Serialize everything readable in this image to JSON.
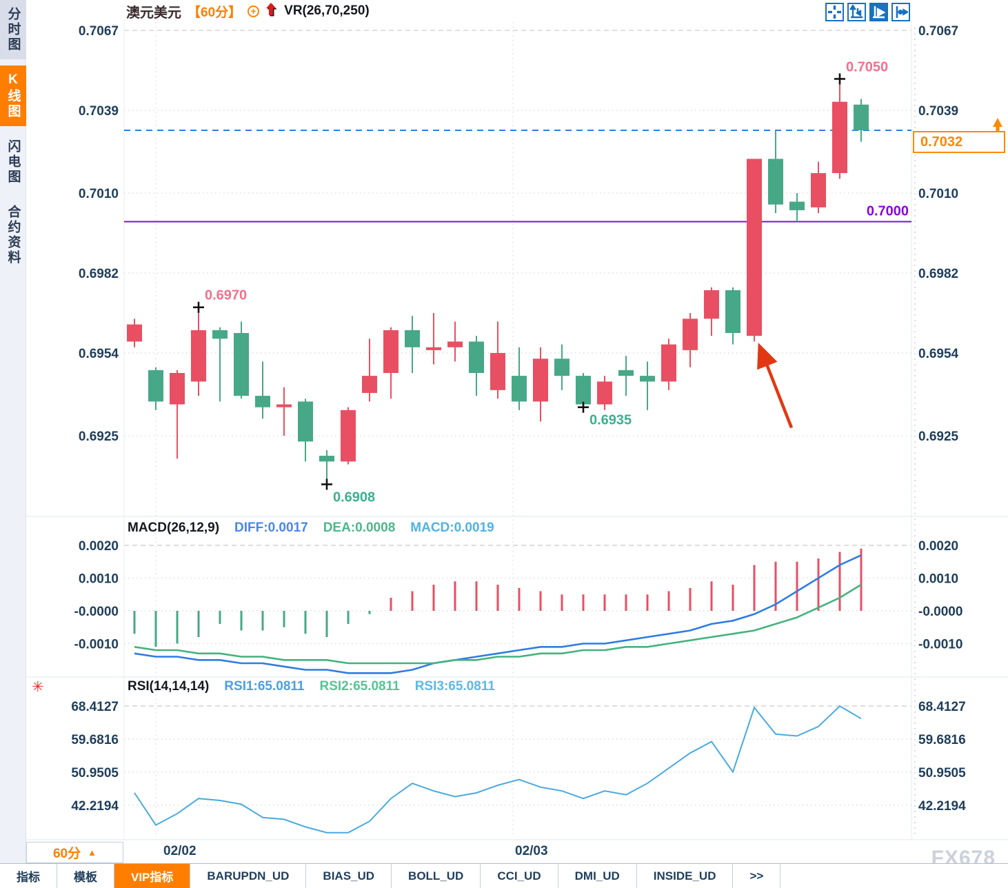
{
  "sidebar": {
    "items": [
      {
        "label": "分时图",
        "active": false
      },
      {
        "label": "K线图",
        "active": true
      },
      {
        "label": "闪电图",
        "active": false
      },
      {
        "label": "合约资料",
        "active": false
      }
    ]
  },
  "header": {
    "symbol": "澳元美元",
    "period": "【60分】",
    "overlay_icon": "circled-plus",
    "trend_icon": "red-up-arrow",
    "indicator": "VR(26,70,250)"
  },
  "toolbar": {
    "icons": [
      "pan-crosshair",
      "axis-range",
      "auto-fit",
      "jump-to-latest"
    ]
  },
  "price_panel": {
    "y_ticks": [
      "0.7067",
      "0.7039",
      "0.7010",
      "0.6982",
      "0.6954",
      "0.6925"
    ],
    "levels": [
      {
        "value": 0.7032,
        "style": "dashed",
        "color": "#2b7de0",
        "label": ""
      },
      {
        "value": 0.7,
        "style": "solid",
        "color": "#8a05d8",
        "label": "0.7000"
      }
    ],
    "last_price_badge": {
      "text": "0.7032",
      "color": "#ff8500"
    },
    "swing_labels": [
      {
        "text": "0.6970",
        "candle_index": 3,
        "at": "high",
        "color": "#f0718c"
      },
      {
        "text": "0.6908",
        "candle_index": 9,
        "at": "low",
        "color": "#3bb08f"
      },
      {
        "text": "0.6935",
        "candle_index": 21,
        "at": "low",
        "color": "#3bb08f"
      },
      {
        "text": "0.7050",
        "candle_index": 33,
        "at": "high",
        "color": "#f0718c"
      }
    ],
    "arrow_annotation": {
      "candle_index": 29,
      "color": "#e23812"
    }
  },
  "chart_data": [
    {
      "type": "candlestick",
      "title": "澳元美元 60分",
      "x_dates": [
        "02/02",
        "02/03"
      ],
      "up_color": "#e84f63",
      "down_color": "#46a886",
      "y_range": [
        0.6896,
        0.7072
      ],
      "candle_columns": [
        "open",
        "high",
        "low",
        "close"
      ],
      "candles": [
        [
          0.6958,
          0.6966,
          0.6956,
          0.6964
        ],
        [
          0.6948,
          0.6949,
          0.6934,
          0.6937
        ],
        [
          0.6936,
          0.6948,
          0.6917,
          0.6947
        ],
        [
          0.6944,
          0.697,
          0.6939,
          0.6962
        ],
        [
          0.6962,
          0.6963,
          0.6937,
          0.6959
        ],
        [
          0.6961,
          0.6965,
          0.6938,
          0.6939
        ],
        [
          0.6939,
          0.6951,
          0.6931,
          0.6935
        ],
        [
          0.6935,
          0.6942,
          0.6925,
          0.6936
        ],
        [
          0.6937,
          0.6938,
          0.6916,
          0.6923
        ],
        [
          0.6918,
          0.692,
          0.6908,
          0.6916
        ],
        [
          0.6916,
          0.6935,
          0.6915,
          0.6934
        ],
        [
          0.694,
          0.6959,
          0.6937,
          0.6946
        ],
        [
          0.6947,
          0.6963,
          0.6938,
          0.6962
        ],
        [
          0.6962,
          0.6967,
          0.6947,
          0.6956
        ],
        [
          0.6955,
          0.6968,
          0.695,
          0.6956
        ],
        [
          0.6956,
          0.6965,
          0.6951,
          0.6958
        ],
        [
          0.6958,
          0.696,
          0.6939,
          0.6947
        ],
        [
          0.6941,
          0.6965,
          0.6938,
          0.6954
        ],
        [
          0.6946,
          0.6956,
          0.6934,
          0.6937
        ],
        [
          0.6937,
          0.6956,
          0.693,
          0.6952
        ],
        [
          0.6952,
          0.6957,
          0.6941,
          0.6946
        ],
        [
          0.6946,
          0.6947,
          0.6935,
          0.6936
        ],
        [
          0.6936,
          0.6946,
          0.6934,
          0.6944
        ],
        [
          0.6948,
          0.6953,
          0.6939,
          0.6946
        ],
        [
          0.6946,
          0.6951,
          0.6934,
          0.6944
        ],
        [
          0.6944,
          0.6959,
          0.6941,
          0.6957
        ],
        [
          0.6955,
          0.6968,
          0.6949,
          0.6966
        ],
        [
          0.6966,
          0.6977,
          0.696,
          0.6976
        ],
        [
          0.6976,
          0.6977,
          0.6957,
          0.6961
        ],
        [
          0.696,
          0.7022,
          0.6958,
          0.7022
        ],
        [
          0.7022,
          0.7032,
          0.7003,
          0.7006
        ],
        [
          0.7007,
          0.701,
          0.7,
          0.7004
        ],
        [
          0.7005,
          0.7021,
          0.7003,
          0.7017
        ],
        [
          0.7017,
          0.705,
          0.7015,
          0.7042
        ],
        [
          0.7041,
          0.7043,
          0.7028,
          0.7032
        ]
      ]
    },
    {
      "type": "bar",
      "name": "MACD",
      "title": "MACD(26,12,9)",
      "y_ticks": [
        "0.0020",
        "0.0010",
        "-0.0000",
        "-0.0010"
      ],
      "histogram": [
        -0.0007,
        -0.0011,
        -0.001,
        -0.0008,
        -0.0004,
        -0.0006,
        -0.0006,
        -0.0005,
        -0.0007,
        -0.0008,
        -0.0004,
        -0.0001,
        0.0004,
        0.0006,
        0.0008,
        0.0009,
        0.0009,
        0.0008,
        0.0007,
        0.0006,
        0.0005,
        0.0005,
        0.0005,
        0.0005,
        0.0005,
        0.0006,
        0.0007,
        0.0009,
        0.0008,
        0.0014,
        0.0015,
        0.0015,
        0.0016,
        0.0018,
        0.0019
      ],
      "series": [
        {
          "name": "DIFF",
          "color": "#2f7ce0",
          "values": [
            -0.0013,
            -0.0014,
            -0.0014,
            -0.0015,
            -0.0015,
            -0.0016,
            -0.0016,
            -0.0017,
            -0.0018,
            -0.0018,
            -0.0019,
            -0.0019,
            -0.0019,
            -0.0018,
            -0.0016,
            -0.0015,
            -0.0014,
            -0.0013,
            -0.0012,
            -0.0011,
            -0.0011,
            -0.001,
            -0.001,
            -0.0009,
            -0.0008,
            -0.0007,
            -0.0006,
            -0.0004,
            -0.0003,
            -0.0001,
            0.0002,
            0.0006,
            0.001,
            0.0014,
            0.0017
          ]
        },
        {
          "name": "DEA",
          "color": "#43b27d",
          "values": [
            -0.0011,
            -0.0012,
            -0.0012,
            -0.0013,
            -0.0013,
            -0.0014,
            -0.0014,
            -0.0015,
            -0.0015,
            -0.0015,
            -0.0016,
            -0.0016,
            -0.0016,
            -0.0016,
            -0.0016,
            -0.0015,
            -0.0015,
            -0.0014,
            -0.0014,
            -0.0013,
            -0.0013,
            -0.0012,
            -0.0012,
            -0.0011,
            -0.0011,
            -0.001,
            -0.0009,
            -0.0008,
            -0.0007,
            -0.0006,
            -0.0004,
            -0.0002,
            0.0001,
            0.0004,
            0.0008
          ]
        }
      ]
    },
    {
      "type": "line",
      "name": "RSI",
      "title": "RSI(14,14,14)",
      "y_ticks": [
        "68.4127",
        "59.6816",
        "50.9505",
        "42.2194"
      ],
      "color": "#49a9de",
      "values": [
        45.5,
        37,
        40,
        44,
        43.5,
        42.5,
        39,
        38.5,
        36.5,
        35,
        35,
        38,
        44,
        48,
        46,
        44.5,
        45.5,
        47.5,
        49,
        47,
        46,
        44,
        46,
        45,
        48,
        52,
        56,
        59,
        51,
        68,
        61,
        60.5,
        63,
        68.4,
        65.08
      ]
    }
  ],
  "macd_panel": {
    "title": "MACD(26,12,9)",
    "legend": [
      {
        "text": "DIFF:0.0017",
        "color": "#4a86e8"
      },
      {
        "text": "DEA:0.0008",
        "color": "#4cb789"
      },
      {
        "text": "MACD:0.0019",
        "color": "#4fb3e2"
      }
    ]
  },
  "rsi_panel": {
    "title": "RSI(14,14,14)",
    "legend": [
      {
        "text": "RSI1:65.0811",
        "color": "#4a9fe0"
      },
      {
        "text": "RSI2:65.0811",
        "color": "#55c493"
      },
      {
        "text": "RSI3:65.0811",
        "color": "#5cb8e8"
      }
    ]
  },
  "bottom_bar": {
    "period": "60分",
    "arrow": "▲",
    "dates": [
      "02/02",
      "02/03"
    ]
  },
  "tab_bar": {
    "tabs": [
      {
        "label": "指标",
        "active": false
      },
      {
        "label": "模板",
        "active": false
      },
      {
        "label": "VIP指标",
        "active": true
      },
      {
        "label": "BARUPDN_UD",
        "active": false
      },
      {
        "label": "BIAS_UD",
        "active": false
      },
      {
        "label": "BOLL_UD",
        "active": false
      },
      {
        "label": "CCI_UD",
        "active": false
      },
      {
        "label": "DMI_UD",
        "active": false
      },
      {
        "label": "INSIDE_UD",
        "active": false
      },
      {
        "label": ">>",
        "active": false
      }
    ]
  },
  "watermark": "FX678"
}
